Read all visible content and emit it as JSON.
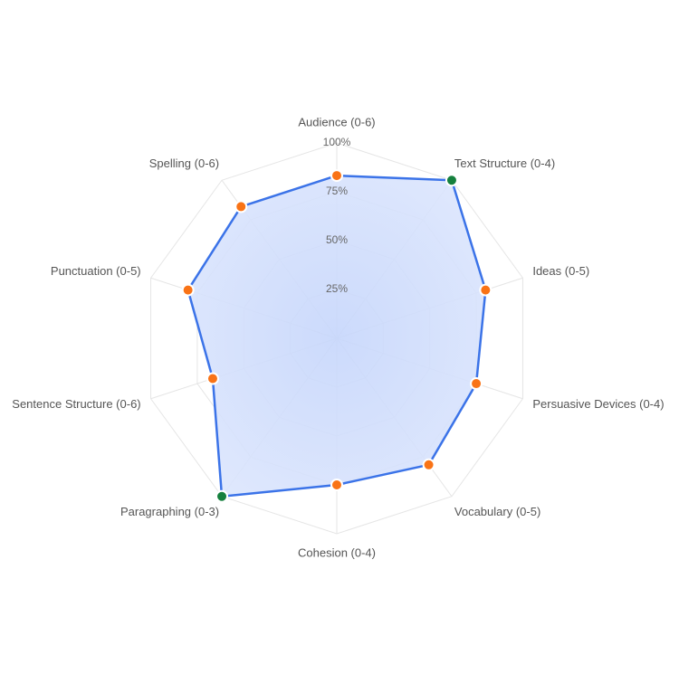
{
  "chart_data": {
    "type": "radar",
    "categories": [
      "Audience (0-6)",
      "Text Structure (0-4)",
      "Ideas (0-5)",
      "Persuasive Devices (0-4)",
      "Vocabulary (0-5)",
      "Cohesion (0-4)",
      "Paragraphing (0-3)",
      "Sentence Structure (0-6)",
      "Punctuation (0-5)",
      "Spelling (0-6)"
    ],
    "values": [
      83.3,
      100,
      80,
      75,
      80,
      75,
      100,
      66.7,
      80,
      83.3
    ],
    "point_colors": [
      "#f97316",
      "#15803d",
      "#f97316",
      "#f97316",
      "#f97316",
      "#f97316",
      "#15803d",
      "#f97316",
      "#f97316",
      "#f97316"
    ],
    "color": "#3b73e8",
    "ylim": [
      0,
      100
    ],
    "yticks": [
      {
        "value": 25,
        "label": "25%"
      },
      {
        "value": 50,
        "label": "50%"
      },
      {
        "value": 75,
        "label": "75%"
      },
      {
        "value": 100,
        "label": "100%"
      }
    ],
    "grid": true
  }
}
